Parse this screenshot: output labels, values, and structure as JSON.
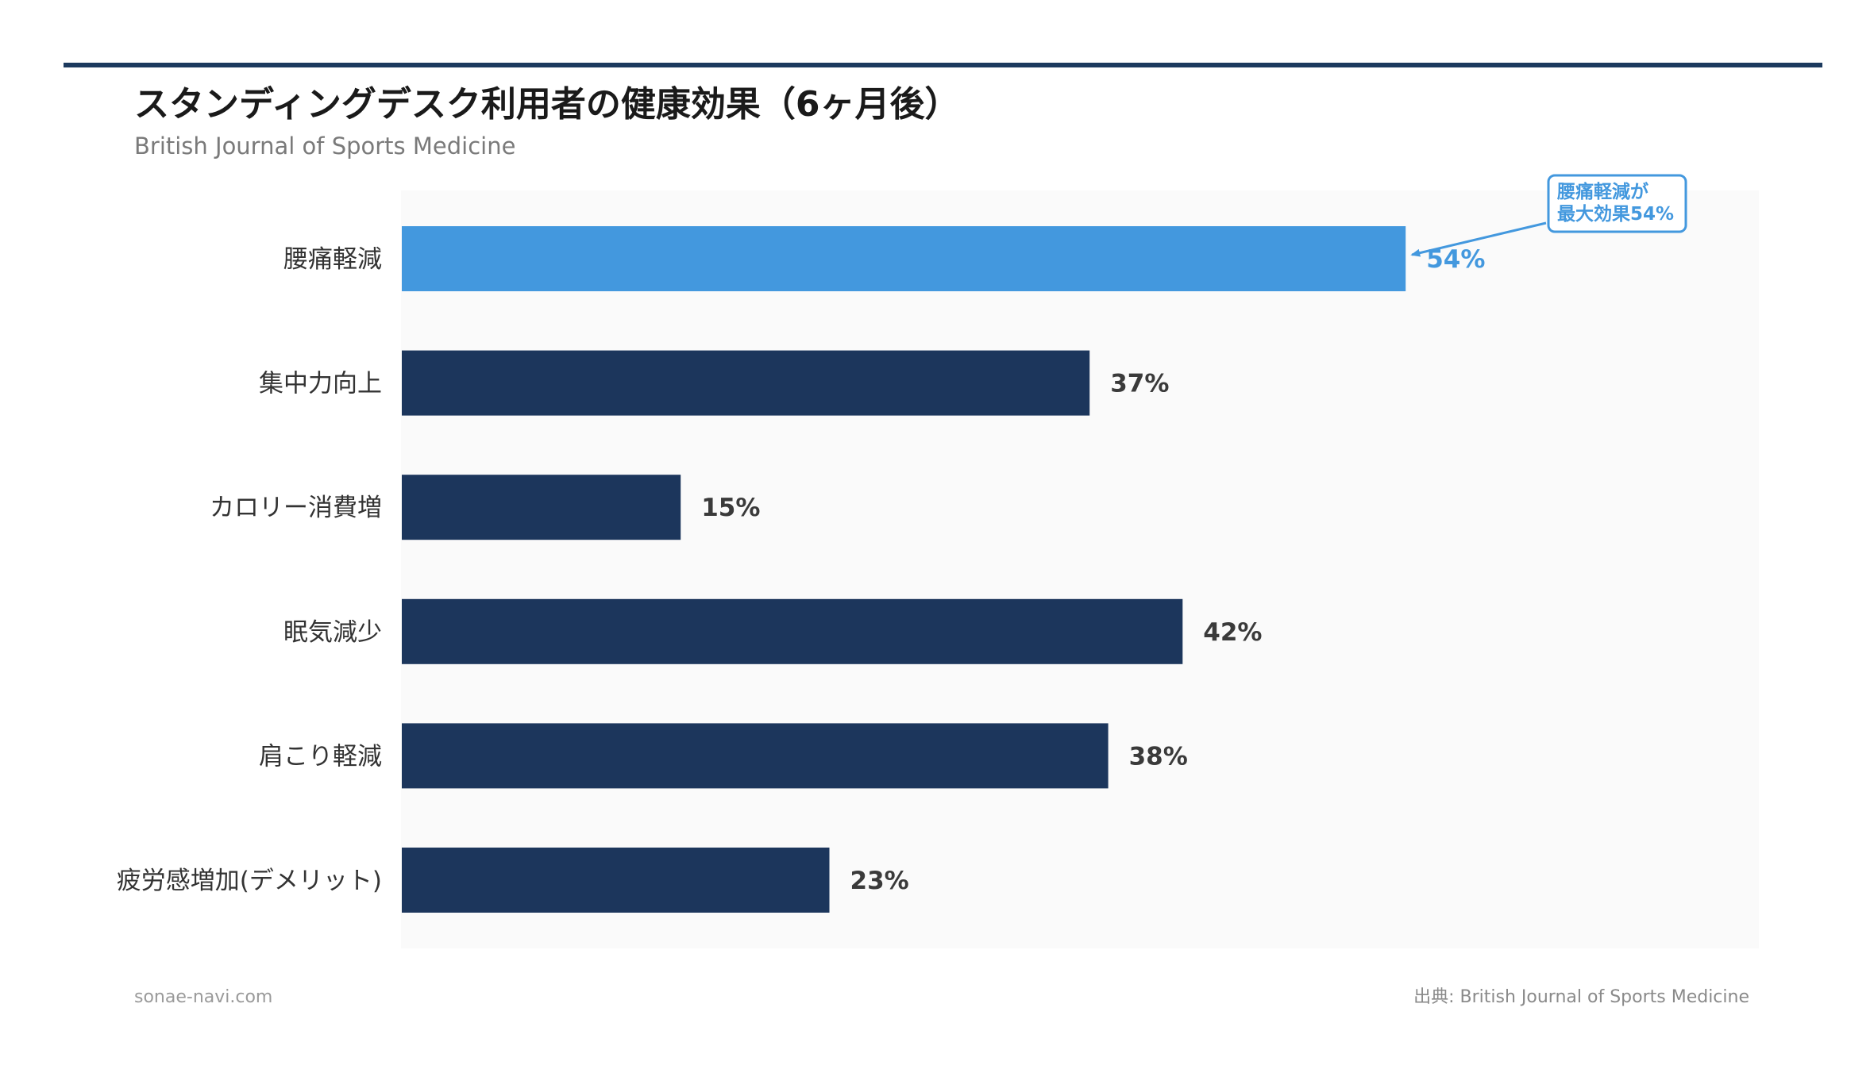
{
  "chart_data": {
    "type": "bar",
    "orientation": "horizontal",
    "title": "スタンディングデスク利用者の健康効果（6ヶ月後）",
    "subtitle": "British Journal of Sports Medicine",
    "categories": [
      "腰痛軽減",
      "集中力向上",
      "カロリー消費増",
      "眠気減少",
      "肩こり軽減",
      "疲労感増加(デメリット)"
    ],
    "values": [
      54,
      37,
      15,
      42,
      38,
      23
    ],
    "value_labels": [
      "54%",
      "37%",
      "15%",
      "42%",
      "38%",
      "23%"
    ],
    "highlight_index": 0,
    "xlim": [
      0,
      73
    ],
    "annotation": {
      "lines": [
        "腰痛軽減が",
        "最大効果54%"
      ],
      "target_index": 0
    },
    "colors": {
      "highlight": "#4398de",
      "bar": "#1c365c",
      "plot_background": "#fafafa",
      "annotation": "#4398de"
    }
  },
  "footer": {
    "site": "sonae-navi.com",
    "source": "出典: British Journal of Sports Medicine"
  }
}
